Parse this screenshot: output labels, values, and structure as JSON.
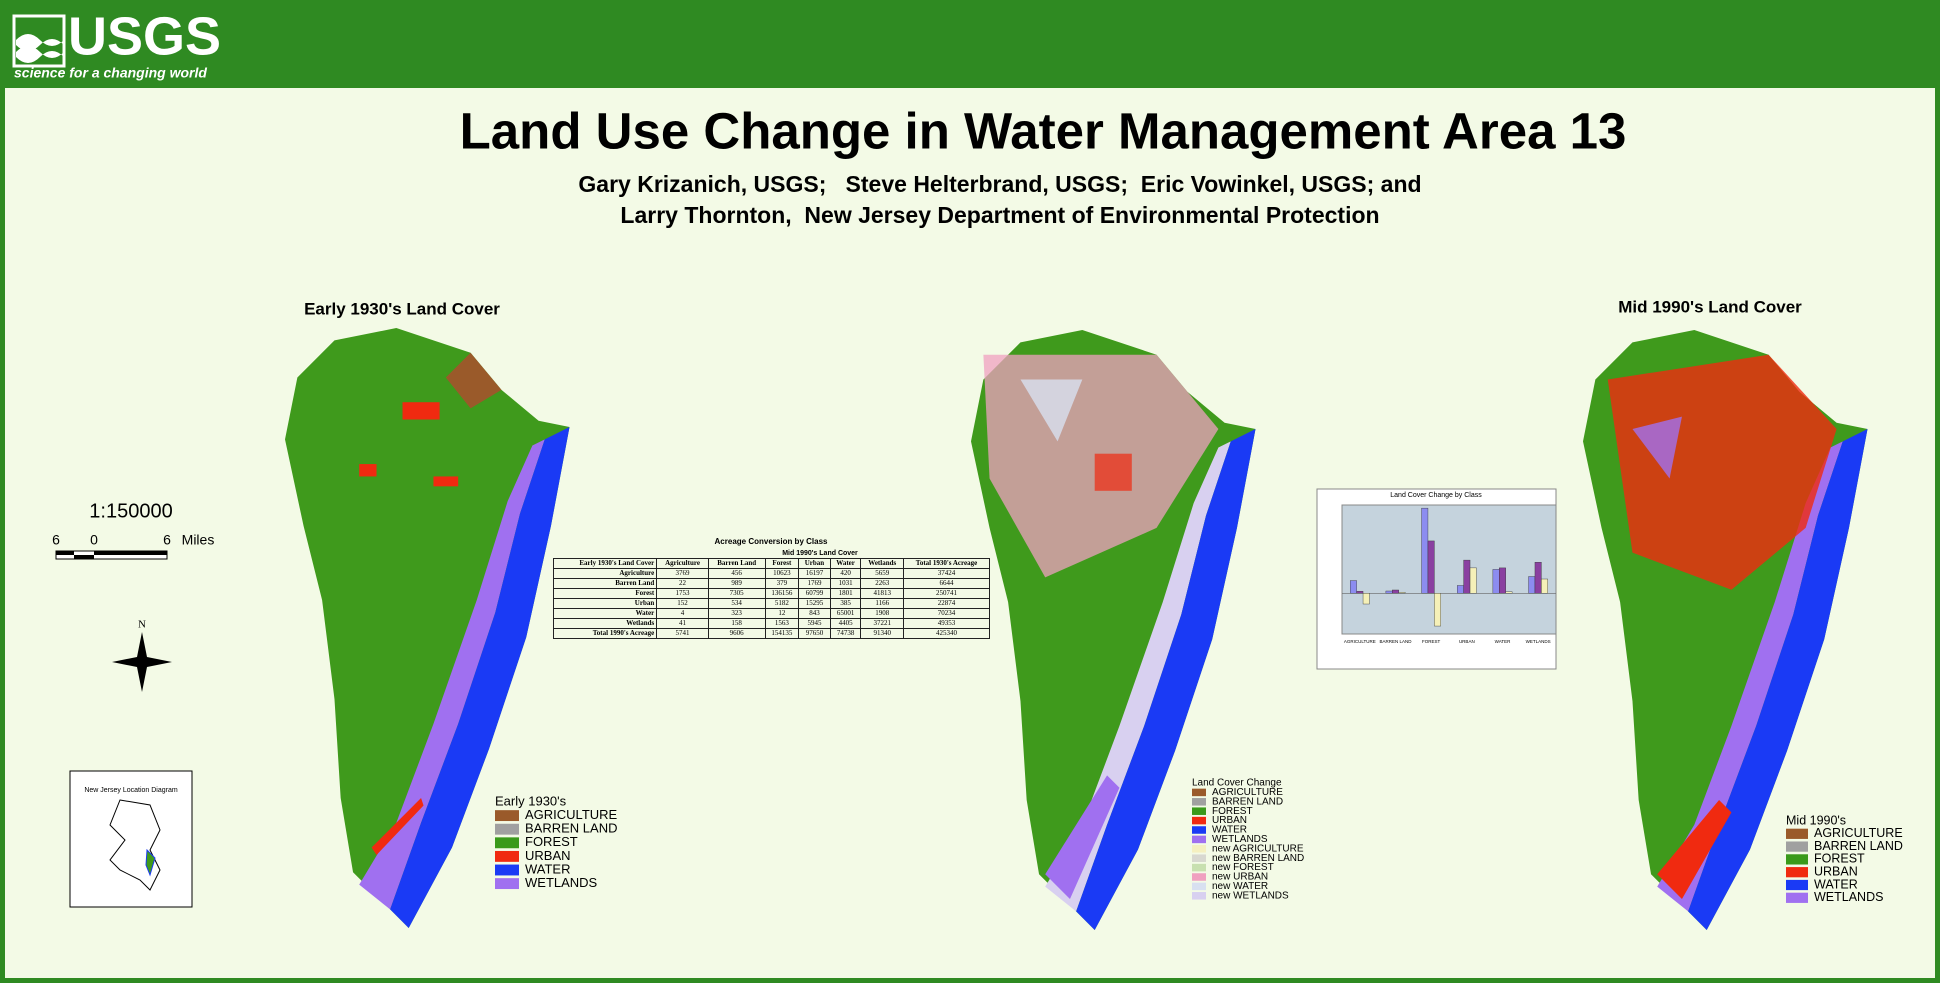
{
  "header": {
    "logo": "USGS",
    "tagline": "science for a changing world"
  },
  "title": "Land Use Change in Water Management Area 13",
  "authors": [
    "Gary Krizanich, USGS;   Steve Helterbrand, USGS;  Eric Vowinkel, USGS; and",
    "Larry Thornton,  New Jersey Department of Environmental Protection"
  ],
  "maps": [
    {
      "title": "Early 1930's Land Cover",
      "legend": {
        "title": "Early 1930's",
        "items": [
          {
            "label": "AGRICULTURE",
            "color": "#9a5a2a"
          },
          {
            "label": "BARREN LAND",
            "color": "#a0a0a0"
          },
          {
            "label": "FOREST",
            "color": "#3a9a1a"
          },
          {
            "label": "URBAN",
            "color": "#f02a10"
          },
          {
            "label": "WATER",
            "color": "#1a3af5"
          },
          {
            "label": "WETLANDS",
            "color": "#a070f0"
          }
        ]
      }
    },
    {
      "legend": {
        "title": "Land Cover Change",
        "items": [
          {
            "label": "AGRICULTURE",
            "color": "#9a5a2a"
          },
          {
            "label": "BARREN LAND",
            "color": "#a0a0a0"
          },
          {
            "label": "FOREST",
            "color": "#3a9a1a"
          },
          {
            "label": "URBAN",
            "color": "#f02a10"
          },
          {
            "label": "WATER",
            "color": "#1a3af5"
          },
          {
            "label": "WETLANDS",
            "color": "#a070f0"
          },
          {
            "label": "new AGRICULTURE",
            "color": "#f5f0c0"
          },
          {
            "label": "new BARREN LAND",
            "color": "#d8d8d0"
          },
          {
            "label": "new FOREST",
            "color": "#c8e0b0"
          },
          {
            "label": "new URBAN",
            "color": "#f0a0c0"
          },
          {
            "label": "new WATER",
            "color": "#d8e0f0"
          },
          {
            "label": "new WETLANDS",
            "color": "#d8d0f0"
          }
        ]
      }
    },
    {
      "title": "Mid 1990's Land Cover",
      "legend": {
        "title": "Mid 1990's",
        "items": [
          {
            "label": "AGRICULTURE",
            "color": "#9a5a2a"
          },
          {
            "label": "BARREN LAND",
            "color": "#a0a0a0"
          },
          {
            "label": "FOREST",
            "color": "#3a9a1a"
          },
          {
            "label": "URBAN",
            "color": "#f02a10"
          },
          {
            "label": "WATER",
            "color": "#1a3af5"
          },
          {
            "label": "WETLANDS",
            "color": "#a070f0"
          }
        ]
      }
    }
  ],
  "scale": {
    "ratio": "1:150000",
    "labels": [
      "6",
      "0",
      "6"
    ],
    "unit": "Miles"
  },
  "north": "N",
  "location_diagram": "New Jersey Location Diagram",
  "acreage_table": {
    "title": "Acreage Conversion by Class",
    "subtitle": "Mid 1990's Land Cover",
    "header": [
      "Early 1930's Land Cover",
      "Agriculture",
      "Barren Land",
      "Forest",
      "Urban",
      "Water",
      "Wetlands",
      "Total 1930's Acreage"
    ],
    "rows": [
      [
        "Agriculture",
        "3769",
        "456",
        "10623",
        "16197",
        "420",
        "5659",
        "37424"
      ],
      [
        "Barren Land",
        "22",
        "989",
        "379",
        "1769",
        "1031",
        "2263",
        "6644"
      ],
      [
        "Forest",
        "1753",
        "7305",
        "136156",
        "60799",
        "1801",
        "41813",
        "250741"
      ],
      [
        "Urban",
        "152",
        "534",
        "5182",
        "15295",
        "385",
        "1166",
        "22874"
      ],
      [
        "Water",
        "4",
        "323",
        "12",
        "843",
        "65001",
        "1908",
        "70234"
      ],
      [
        "Wetlands",
        "41",
        "158",
        "1563",
        "5945",
        "4405",
        "37221",
        "49353"
      ],
      [
        "Total 1990's Acreage",
        "5741",
        "9606",
        "154135",
        "97650",
        "74738",
        "91340",
        "425340"
      ]
    ]
  },
  "chart_data": {
    "type": "bar",
    "title": "Land Cover Change by Class",
    "categories": [
      "AGRICULTURE",
      "BARREN LAND",
      "FOREST",
      "URBAN",
      "WATER",
      "WETLANDS"
    ],
    "series": [
      {
        "color": "#8c8cf0",
        "values": [
          37424,
          6644,
          250741,
          22874,
          70234,
          49353
        ]
      },
      {
        "color": "#8a3fa0",
        "values": [
          5741,
          9606,
          154135,
          97650,
          74738,
          91340
        ]
      },
      {
        "color": "#f5f0b8",
        "values": [
          -31683,
          2962,
          -96606,
          74776,
          4504,
          41987
        ]
      }
    ],
    "ylim": [
      -120000,
      260000
    ]
  }
}
